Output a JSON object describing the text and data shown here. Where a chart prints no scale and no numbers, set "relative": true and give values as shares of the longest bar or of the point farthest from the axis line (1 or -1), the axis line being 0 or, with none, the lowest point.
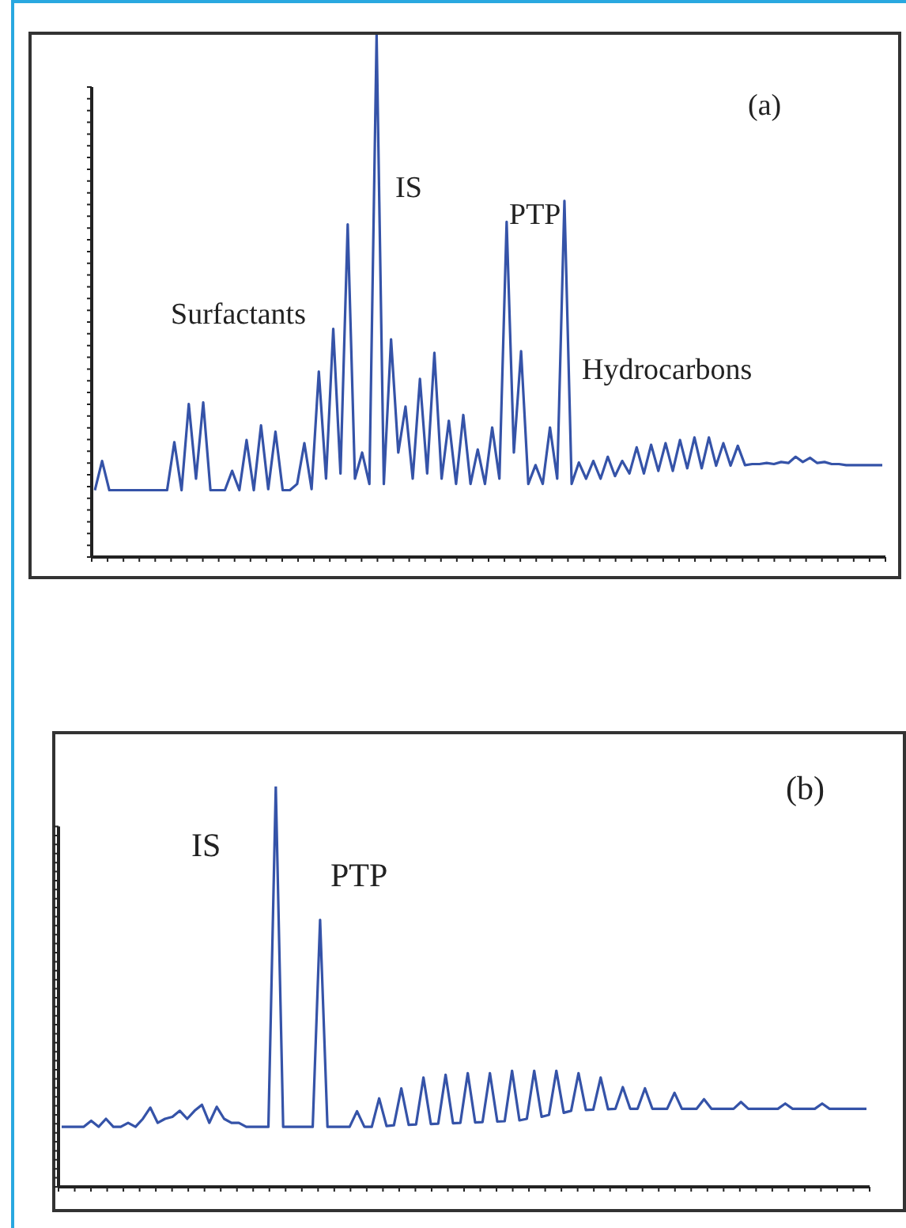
{
  "chart_data": [
    {
      "type": "line",
      "relative": true,
      "color": "#3553a8",
      "annotations": [
        "(a)",
        "Surfactants",
        "IS",
        "PTP",
        "Hydrocarbons"
      ],
      "categories": [
        null,
        null,
        null,
        null,
        null,
        null,
        null,
        null,
        null,
        null,
        null,
        null,
        null,
        null,
        null,
        null,
        null,
        null,
        null,
        null,
        null,
        null,
        null,
        null,
        null,
        null,
        null,
        null,
        null,
        null,
        null,
        null,
        null,
        null,
        null,
        null,
        null,
        null,
        null,
        null,
        null,
        null,
        null,
        null,
        null,
        null,
        null,
        null,
        null,
        null,
        null,
        null,
        null,
        null,
        null,
        null,
        null,
        null,
        null,
        null,
        null,
        null,
        null,
        null,
        null,
        null,
        null,
        null,
        null,
        null,
        null,
        null,
        null,
        null,
        null,
        null,
        null,
        null,
        null,
        null,
        null,
        null,
        null,
        null,
        null,
        null,
        null,
        null,
        null,
        null,
        null,
        null,
        null,
        null,
        null,
        null,
        null,
        null,
        null,
        null,
        null,
        null,
        null,
        null,
        null,
        null,
        null,
        null,
        null,
        null
      ],
      "values": [
        0.128,
        0.184,
        0.128,
        0.128,
        0.128,
        0.128,
        0.128,
        0.128,
        0.128,
        0.128,
        0.128,
        0.22,
        0.128,
        0.293,
        0.15,
        0.296,
        0.128,
        0.128,
        0.128,
        0.165,
        0.128,
        0.224,
        0.128,
        0.252,
        0.13,
        0.24,
        0.128,
        0.128,
        0.14,
        0.218,
        0.13,
        0.355,
        0.15,
        0.437,
        0.16,
        0.637,
        0.15,
        0.2,
        0.14,
        1.0,
        0.14,
        0.417,
        0.2,
        0.288,
        0.15,
        0.341,
        0.16,
        0.391,
        0.15,
        0.261,
        0.14,
        0.272,
        0.14,
        0.206,
        0.14,
        0.248,
        0.15,
        0.642,
        0.2,
        0.394,
        0.14,
        0.176,
        0.14,
        0.248,
        0.15,
        0.682,
        0.14,
        0.181,
        0.15,
        0.184,
        0.15,
        0.192,
        0.155,
        0.184,
        0.16,
        0.21,
        0.16,
        0.215,
        0.165,
        0.218,
        0.165,
        0.224,
        0.17,
        0.229,
        0.17,
        0.229,
        0.175,
        0.218,
        0.175,
        0.213,
        0.176,
        0.178,
        0.178,
        0.18,
        0.178,
        0.182,
        0.18,
        0.192,
        0.182,
        0.19,
        0.18,
        0.182,
        0.178,
        0.178,
        0.176,
        0.176,
        0.176,
        0.176,
        0.176,
        0.176
      ]
    },
    {
      "type": "line",
      "relative": true,
      "color": "#3553a8",
      "annotations": [
        "(b)",
        "IS",
        "PTP"
      ],
      "categories": [
        null,
        null,
        null,
        null,
        null,
        null,
        null,
        null,
        null,
        null,
        null,
        null,
        null,
        null,
        null,
        null,
        null,
        null,
        null,
        null,
        null,
        null,
        null,
        null,
        null,
        null,
        null,
        null,
        null,
        null,
        null,
        null,
        null,
        null,
        null,
        null,
        null,
        null,
        null,
        null,
        null,
        null,
        null,
        null,
        null,
        null,
        null,
        null,
        null,
        null,
        null,
        null,
        null,
        null,
        null,
        null,
        null,
        null,
        null,
        null,
        null,
        null,
        null,
        null,
        null,
        null,
        null,
        null,
        null,
        null,
        null,
        null,
        null,
        null,
        null,
        null,
        null,
        null,
        null,
        null,
        null,
        null,
        null,
        null,
        null,
        null,
        null,
        null,
        null,
        null,
        null,
        null,
        null,
        null,
        null,
        null,
        null,
        null,
        null,
        null,
        null,
        null,
        null,
        null,
        null,
        null,
        null,
        null,
        null,
        null
      ],
      "values": [
        0.15,
        0.15,
        0.15,
        0.15,
        0.165,
        0.15,
        0.17,
        0.15,
        0.15,
        0.16,
        0.15,
        0.17,
        0.198,
        0.16,
        0.17,
        0.175,
        0.19,
        0.17,
        0.19,
        0.205,
        0.16,
        0.2,
        0.17,
        0.16,
        0.16,
        0.15,
        0.15,
        0.15,
        0.15,
        1.0,
        0.15,
        0.15,
        0.15,
        0.15,
        0.15,
        0.667,
        0.15,
        0.15,
        0.15,
        0.15,
        0.189,
        0.15,
        0.15,
        0.221,
        0.152,
        0.154,
        0.246,
        0.155,
        0.156,
        0.273,
        0.157,
        0.158,
        0.28,
        0.159,
        0.16,
        0.284,
        0.161,
        0.162,
        0.284,
        0.163,
        0.164,
        0.29,
        0.166,
        0.17,
        0.29,
        0.175,
        0.18,
        0.29,
        0.185,
        0.19,
        0.284,
        0.192,
        0.193,
        0.273,
        0.194,
        0.195,
        0.249,
        0.195,
        0.195,
        0.246,
        0.195,
        0.195,
        0.195,
        0.235,
        0.195,
        0.195,
        0.195,
        0.219,
        0.195,
        0.195,
        0.195,
        0.195,
        0.212,
        0.195,
        0.195,
        0.195,
        0.195,
        0.195,
        0.208,
        0.195,
        0.195,
        0.195,
        0.195,
        0.208,
        0.195,
        0.195,
        0.195,
        0.195,
        0.195,
        0.195
      ]
    }
  ]
}
